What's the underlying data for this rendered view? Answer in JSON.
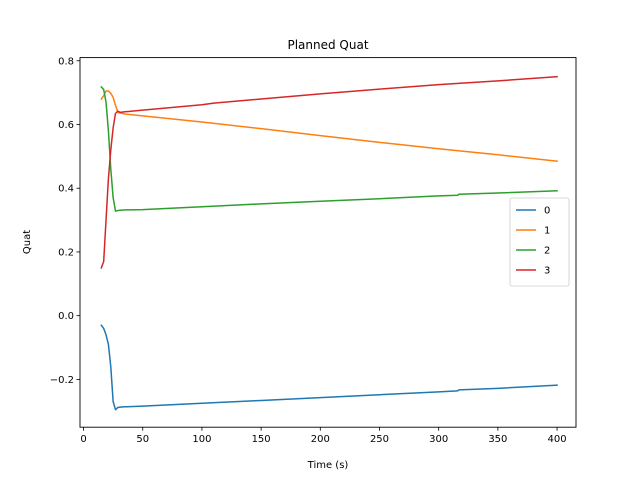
{
  "chart_data": {
    "type": "line",
    "title": "Planned Quat",
    "xlabel": "Time (s)",
    "ylabel": "Quat",
    "xlim": [
      -3,
      416
    ],
    "ylim": [
      -0.35,
      0.81
    ],
    "xticks": [
      0,
      50,
      100,
      150,
      200,
      250,
      300,
      350,
      400
    ],
    "yticks": [
      -0.2,
      0.0,
      0.2,
      0.4,
      0.6,
      0.8
    ],
    "ytick_labels": [
      "−0.2",
      "0.0",
      "0.2",
      "0.4",
      "0.6",
      "0.8"
    ],
    "grid": false,
    "legend_position": "center-right",
    "series": [
      {
        "name": "0",
        "color": "#1f77b4",
        "x": [
          15,
          17,
          19,
          21,
          23,
          25,
          27,
          29,
          31,
          35,
          50,
          100,
          150,
          200,
          250,
          300,
          316,
          317,
          350,
          400
        ],
        "y": [
          -0.03,
          -0.04,
          -0.06,
          -0.09,
          -0.16,
          -0.27,
          -0.295,
          -0.288,
          -0.287,
          -0.286,
          -0.284,
          -0.275,
          -0.266,
          -0.257,
          -0.248,
          -0.239,
          -0.236,
          -0.233,
          -0.228,
          -0.218
        ]
      },
      {
        "name": "1",
        "color": "#ff7f0e",
        "x": [
          15,
          17,
          19,
          21,
          23,
          25,
          27,
          29,
          31,
          35,
          50,
          100,
          150,
          200,
          250,
          300,
          350,
          400
        ],
        "y": [
          0.68,
          0.69,
          0.705,
          0.705,
          0.698,
          0.685,
          0.66,
          0.638,
          0.636,
          0.633,
          0.627,
          0.608,
          0.587,
          0.565,
          0.544,
          0.524,
          0.505,
          0.485
        ]
      },
      {
        "name": "2",
        "color": "#2ca02c",
        "x": [
          15,
          17,
          19,
          21,
          23,
          25,
          27,
          29,
          31,
          35,
          50,
          100,
          150,
          200,
          250,
          300,
          316,
          317,
          350,
          400
        ],
        "y": [
          0.718,
          0.71,
          0.67,
          0.58,
          0.46,
          0.37,
          0.328,
          0.33,
          0.331,
          0.332,
          0.333,
          0.342,
          0.351,
          0.359,
          0.367,
          0.376,
          0.378,
          0.381,
          0.385,
          0.392
        ]
      },
      {
        "name": "3",
        "color": "#d62728",
        "x": [
          15,
          17,
          19,
          21,
          23,
          25,
          27,
          29,
          31,
          35,
          50,
          100,
          110,
          150,
          200,
          250,
          300,
          350,
          400
        ],
        "y": [
          0.15,
          0.17,
          0.3,
          0.43,
          0.52,
          0.59,
          0.635,
          0.642,
          0.638,
          0.64,
          0.645,
          0.662,
          0.667,
          0.68,
          0.696,
          0.711,
          0.725,
          0.737,
          0.75
        ]
      }
    ]
  }
}
